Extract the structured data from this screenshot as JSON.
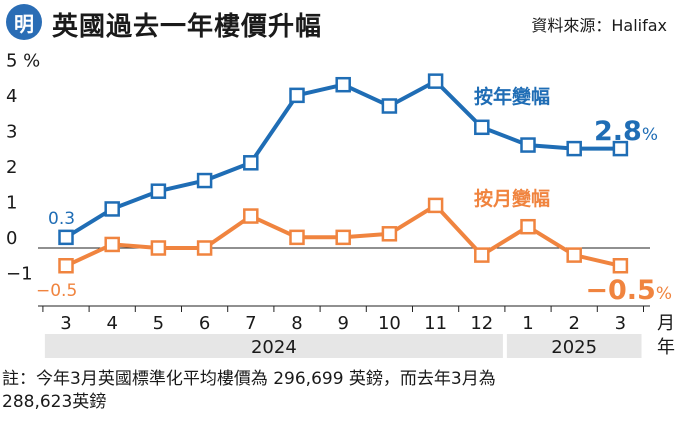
{
  "header": {
    "logo_text": "明",
    "title": "英國過去一年樓價升幅",
    "source": "資料來源：Halifax"
  },
  "colors": {
    "yoy": "#1f6db5",
    "mom": "#f0843f",
    "band": "#e6e6e6",
    "logo": "#2a6db5"
  },
  "chart_data": {
    "type": "line",
    "categories": [
      "3",
      "4",
      "5",
      "6",
      "7",
      "8",
      "9",
      "10",
      "11",
      "12",
      "1",
      "2",
      "3"
    ],
    "x_unit_label": "月",
    "year_unit_label": "年",
    "year_groups": [
      {
        "label": "2024",
        "start": 0,
        "end": 9
      },
      {
        "label": "2025",
        "start": 10,
        "end": 12
      }
    ],
    "yticks": [
      "5 %",
      "4",
      "3",
      "2",
      "1",
      "0",
      "−1"
    ],
    "ytick_values": [
      5,
      4,
      3,
      2,
      1,
      0,
      -1
    ],
    "ylim": [
      -1.5,
      5.5
    ],
    "series": [
      {
        "name": "按年變幅",
        "values": [
          0.3,
          1.1,
          1.6,
          1.9,
          2.4,
          4.3,
          4.6,
          4.0,
          4.7,
          3.4,
          2.9,
          2.8,
          2.8
        ],
        "start_label": "0.3",
        "end_label_num": "2.8",
        "end_label_unit": "%"
      },
      {
        "name": "按月變幅",
        "values": [
          -0.5,
          0.1,
          0.0,
          0.0,
          0.9,
          0.3,
          0.3,
          0.4,
          1.2,
          -0.2,
          0.6,
          -0.2,
          -0.5
        ],
        "start_label": "−0.5",
        "end_label_num": "−0.5",
        "end_label_unit": "%"
      }
    ]
  },
  "note": {
    "line1": "註：今年3月英國標準化平均樓價為 296,699 英鎊，而去年3月為",
    "line2": "288,623英鎊"
  }
}
